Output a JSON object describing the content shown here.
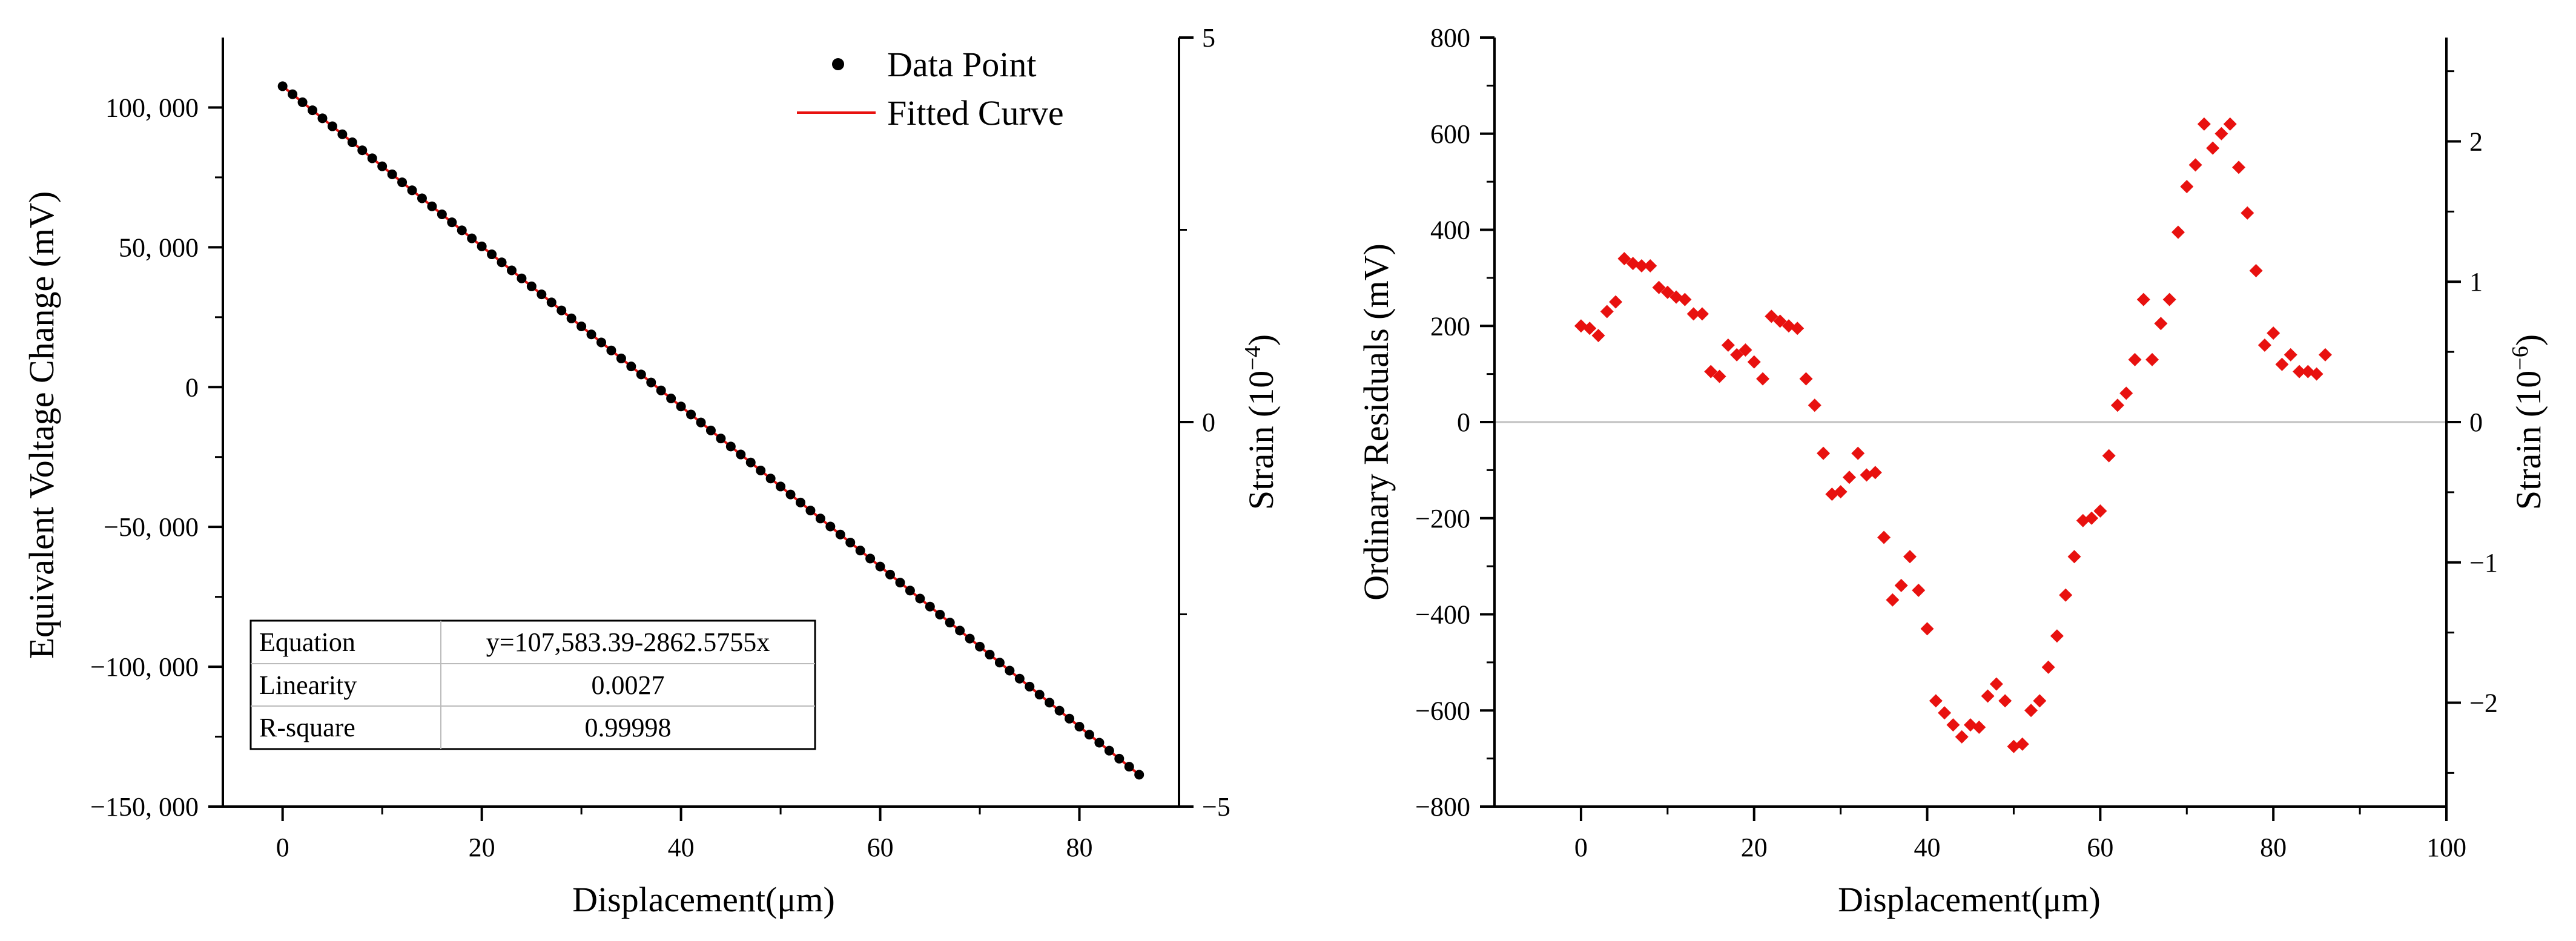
{
  "chart_data": [
    {
      "type": "scatter",
      "xlabel": "Displacement(μm)",
      "ylabel": "Equivalent Voltage Change (mV)",
      "y2label_prefix": "Strain (10",
      "y2label_exp": "−4",
      "y2label_suffix": ")",
      "xlim": [
        -6,
        90
      ],
      "ylim": [
        -150000,
        125000
      ],
      "y2lim": [
        -5,
        5
      ],
      "xticks": [
        0,
        20,
        40,
        60,
        80
      ],
      "xtick_labels": [
        "0",
        "20",
        "40",
        "60",
        "80"
      ],
      "yticks": [
        -150000,
        -100000,
        -50000,
        0,
        50000,
        100000
      ],
      "ytick_labels": [
        "−150, 000",
        "−100, 000",
        "−50, 000",
        "0",
        "50, 000",
        "100, 000"
      ],
      "y2ticks": [
        -5,
        0,
        5
      ],
      "y2tick_labels": [
        "−5",
        "0",
        "5"
      ],
      "grid": false,
      "legend": {
        "placement": "top-right",
        "entries": [
          {
            "label": "Data Point",
            "marker": "circle",
            "color": "#000000"
          },
          {
            "label": "Fitted Curve",
            "marker": "line",
            "color": "#e8110f"
          }
        ]
      },
      "fit": {
        "intercept": 107583.39,
        "slope": -2862.5755,
        "x_range": [
          0,
          86
        ],
        "color": "#e8110f"
      },
      "points": {
        "x_start": 0,
        "x_end": 86,
        "x_step": 1,
        "color": "#000000"
      },
      "table": {
        "placement": "bottom-left",
        "rows": [
          {
            "label": "Equation",
            "value": "y=107,583.39-2862.5755x"
          },
          {
            "label": "Linearity",
            "value": "0.0027"
          },
          {
            "label": "R-square",
            "value": "0.99998"
          }
        ]
      }
    },
    {
      "type": "scatter",
      "xlabel": "Displacement(μm)",
      "ylabel": "Ordinary Residuals (mV)",
      "y2label_prefix": "Strain (10",
      "y2label_exp": "−6",
      "y2label_suffix": ")",
      "xlim": [
        -10,
        100
      ],
      "ylim": [
        -800,
        800
      ],
      "y2lim": [
        -2.74,
        2.74
      ],
      "xticks": [
        0,
        20,
        40,
        60,
        80,
        100
      ],
      "xtick_labels": [
        "0",
        "20",
        "40",
        "60",
        "80",
        "100"
      ],
      "yticks": [
        -800,
        -600,
        -400,
        -200,
        0,
        200,
        400,
        600,
        800
      ],
      "ytick_labels": [
        "−800",
        "−600",
        "−400",
        "−200",
        "0",
        "200",
        "400",
        "600",
        "800"
      ],
      "y2ticks": [
        -2,
        -1,
        0,
        1,
        2
      ],
      "y2tick_labels": [
        "−2",
        "−1",
        "0",
        "1",
        "2"
      ],
      "zero_line": true,
      "grid": false,
      "marker": "diamond",
      "color": "#e8110f",
      "x": [
        0,
        1,
        2,
        3,
        4,
        5,
        6,
        7,
        8,
        9,
        10,
        11,
        12,
        13,
        14,
        15,
        16,
        17,
        18,
        19,
        20,
        21,
        22,
        23,
        24,
        25,
        26,
        27,
        28,
        29,
        30,
        31,
        32,
        33,
        34,
        35,
        36,
        37,
        38,
        39,
        40,
        41,
        42,
        43,
        44,
        45,
        46,
        47,
        48,
        49,
        50,
        51,
        52,
        53,
        54,
        55,
        56,
        57,
        58,
        59,
        60,
        61,
        62,
        63,
        64,
        65,
        66,
        67,
        68,
        69,
        70,
        71,
        72,
        73,
        74,
        75,
        76,
        77,
        78,
        79,
        80,
        81,
        82,
        83,
        84,
        85,
        86
      ],
      "y": [
        200,
        195,
        180,
        230,
        250,
        340,
        330,
        325,
        325,
        280,
        270,
        260,
        255,
        225,
        225,
        105,
        95,
        160,
        140,
        150,
        125,
        90,
        220,
        210,
        200,
        195,
        90,
        35,
        -65,
        -150,
        -145,
        -115,
        -65,
        -110,
        -105,
        -240,
        -370,
        -340,
        -280,
        -350,
        -430,
        -580,
        -605,
        -630,
        -655,
        -630,
        -635,
        -570,
        -545,
        -580,
        -675,
        -670,
        -600,
        -580,
        -510,
        -445,
        -360,
        -280,
        -205,
        -200,
        -185,
        -70,
        35,
        60,
        130,
        255,
        130,
        205,
        255,
        395,
        490,
        535,
        620,
        570,
        600,
        620,
        530,
        435,
        315,
        160,
        185,
        120,
        140,
        105,
        105,
        100,
        140
      ]
    }
  ]
}
